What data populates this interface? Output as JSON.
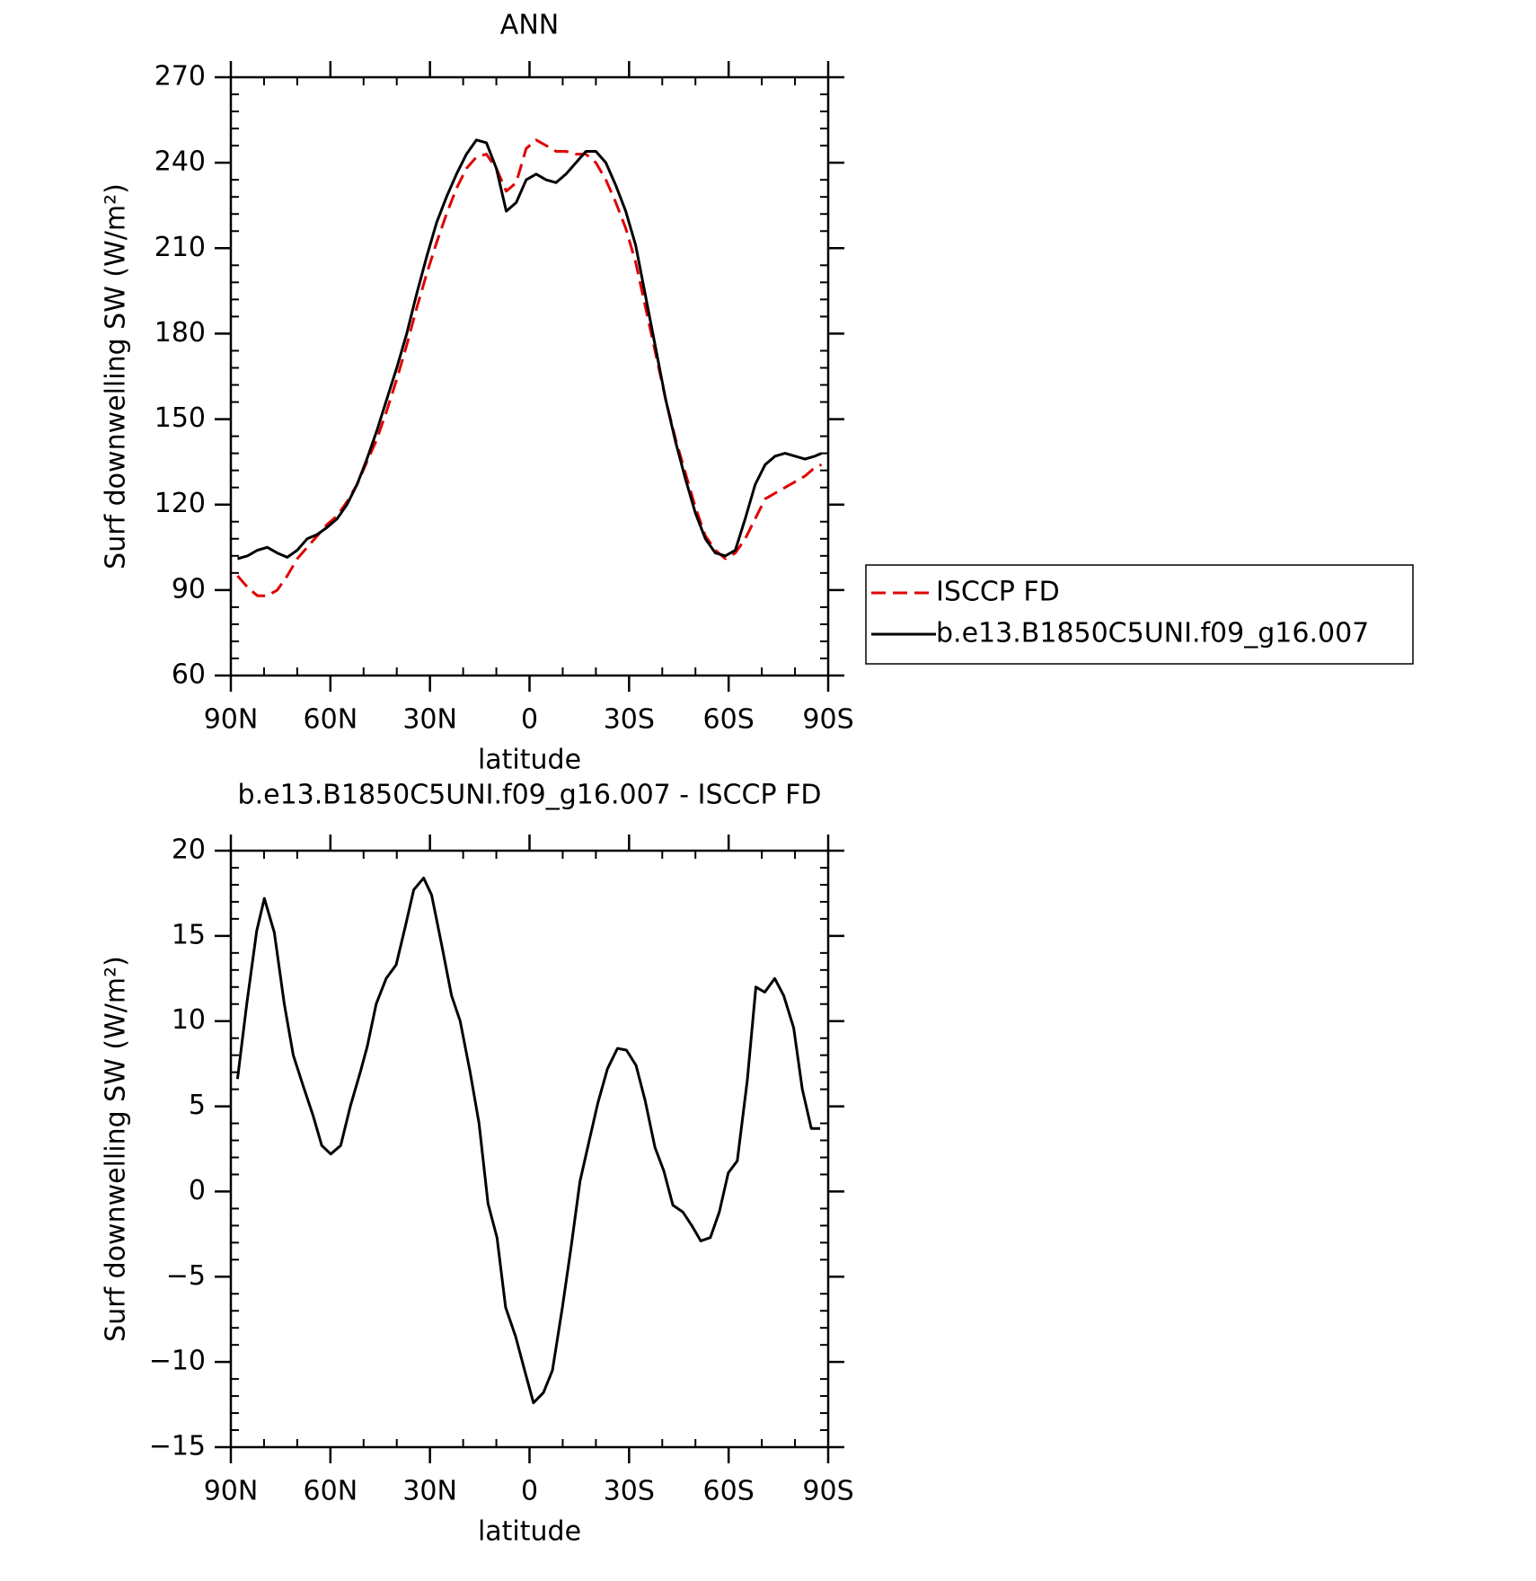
{
  "chart_data": [
    {
      "type": "line",
      "title": "ANN",
      "xlabel": "latitude",
      "ylabel": "Surf downwelling SW (W/m²)",
      "x": [
        88,
        85,
        82,
        79,
        76,
        73,
        70,
        67,
        64,
        61,
        58,
        55,
        52,
        49,
        46,
        43,
        40,
        37,
        34,
        31,
        28,
        25,
        22,
        19,
        16,
        13,
        10,
        7,
        4,
        1,
        -2,
        -5,
        -8,
        -11,
        -14,
        -17,
        -20,
        -23,
        -26,
        -29,
        -32,
        -35,
        -38,
        -41,
        -44,
        -47,
        -50,
        -53,
        -56,
        -59,
        -62,
        -65,
        -68,
        -71,
        -74,
        -77,
        -80,
        -83,
        -86,
        -88
      ],
      "series": [
        {
          "name": "ISCCP FD",
          "color": "#e00000",
          "dash": true,
          "values": [
            95,
            91,
            88,
            88,
            90,
            95,
            101,
            105,
            109,
            113,
            116,
            121,
            127,
            135,
            143,
            153,
            164,
            176,
            189,
            201,
            212,
            222,
            231,
            238,
            242,
            243,
            238,
            230,
            233,
            245,
            248,
            246,
            244,
            244,
            243,
            243,
            240,
            234,
            226,
            217,
            205,
            189,
            173,
            157,
            143,
            131,
            119,
            109,
            104,
            101,
            103,
            108,
            115,
            122,
            124,
            126,
            128,
            130,
            133,
            134
          ]
        },
        {
          "name": "b.e13.B1850C5UNI.f09_g16.007",
          "color": "#000000",
          "dash": false,
          "values": [
            101,
            102,
            104,
            105,
            103,
            101.5,
            104,
            108,
            109.5,
            112,
            115,
            120,
            127,
            136,
            146,
            157,
            168,
            180,
            194,
            207,
            219,
            228,
            236,
            243,
            248,
            247,
            238,
            223,
            226,
            234,
            236,
            234,
            233,
            236,
            240,
            244,
            244,
            240,
            232,
            223,
            211,
            193,
            175,
            157,
            142,
            129,
            117,
            108,
            103,
            102,
            104,
            115,
            127,
            134,
            137,
            138,
            137,
            136,
            137,
            138
          ]
        }
      ],
      "xlim": [
        90,
        -90
      ],
      "xticks": [
        {
          "value": 90,
          "label": "90N"
        },
        {
          "value": 60,
          "label": "60N"
        },
        {
          "value": 30,
          "label": "30N"
        },
        0,
        {
          "value": -30,
          "label": "30S"
        },
        {
          "value": -60,
          "label": "60S"
        },
        {
          "value": -90,
          "label": "90S"
        }
      ],
      "ylim": [
        60,
        270
      ],
      "yticks": [
        60,
        90,
        120,
        150,
        180,
        210,
        240,
        270
      ],
      "legend": "right"
    },
    {
      "type": "line",
      "title": "b.e13.B1850C5UNI.f09_g16.007 - ISCCP FD",
      "xlabel": "latitude",
      "ylabel": "Surf downwelling SW (W/m²)",
      "x": [
        88,
        85.2,
        82.2,
        79.9,
        76.9,
        73.9,
        71.2,
        68.2,
        65.3,
        62.6,
        59.9,
        56.9,
        54,
        51,
        48.9,
        46.2,
        43.2,
        40.2,
        37.5,
        34.9,
        31.9,
        29.5,
        26.5,
        23.5,
        20.9,
        17.9,
        15.2,
        12.5,
        9.8,
        7.2,
        4.2,
        1.2,
        -1.2,
        -4.2,
        -6.9,
        -9.9,
        -12.5,
        -15.2,
        -17.9,
        -20.6,
        -23.5,
        -26.5,
        -29.2,
        -32.1,
        -34.9,
        -37.8,
        -40.5,
        -43.2,
        -46.2,
        -48.9,
        -51.6,
        -54.5,
        -57.2,
        -59.9,
        -62.6,
        -65.6,
        -68.2,
        -70.9,
        -73.9,
        -76.6,
        -79.6,
        -82.2,
        -84.9,
        -87.6
      ],
      "series": [
        {
          "name": "b.e13.B1850C5UNI.f09_g16.007 - ISCCP FD",
          "color": "#000000",
          "dash": false,
          "values": [
            6.6,
            11,
            15.3,
            17.2,
            15.2,
            11,
            8,
            6.2,
            4.5,
            2.7,
            2.2,
            2.7,
            5,
            7,
            8.5,
            11,
            12.5,
            13.3,
            15.5,
            17.7,
            18.4,
            17.4,
            14.5,
            11.5,
            10,
            7,
            4,
            -0.7,
            -2.7,
            -6.8,
            -8.5,
            -10.7,
            -12.4,
            -11.8,
            -10.5,
            -6.8,
            -3.3,
            0.6,
            2.9,
            5.2,
            7.2,
            8.4,
            8.3,
            7.4,
            5.3,
            2.6,
            1.2,
            -0.8,
            -1.2,
            -2,
            -2.9,
            -2.7,
            -1.2,
            1.1,
            1.8,
            6.5,
            12,
            11.7,
            12.5,
            11.5,
            9.6,
            6,
            3.7,
            3.7
          ]
        }
      ],
      "xlim": [
        90,
        -90
      ],
      "xticks": [
        {
          "value": 90,
          "label": "90N"
        },
        {
          "value": 60,
          "label": "60N"
        },
        {
          "value": 30,
          "label": "30N"
        },
        0,
        {
          "value": -30,
          "label": "30S"
        },
        {
          "value": -60,
          "label": "60S"
        },
        {
          "value": -90,
          "label": "90S"
        }
      ],
      "ylim": [
        -15,
        20
      ],
      "yticks": [
        {
          "value": -15,
          "label": "−15"
        },
        {
          "value": -10,
          "label": "−10"
        },
        {
          "value": -5,
          "label": "−5"
        },
        0,
        5,
        10,
        15,
        20
      ]
    }
  ]
}
